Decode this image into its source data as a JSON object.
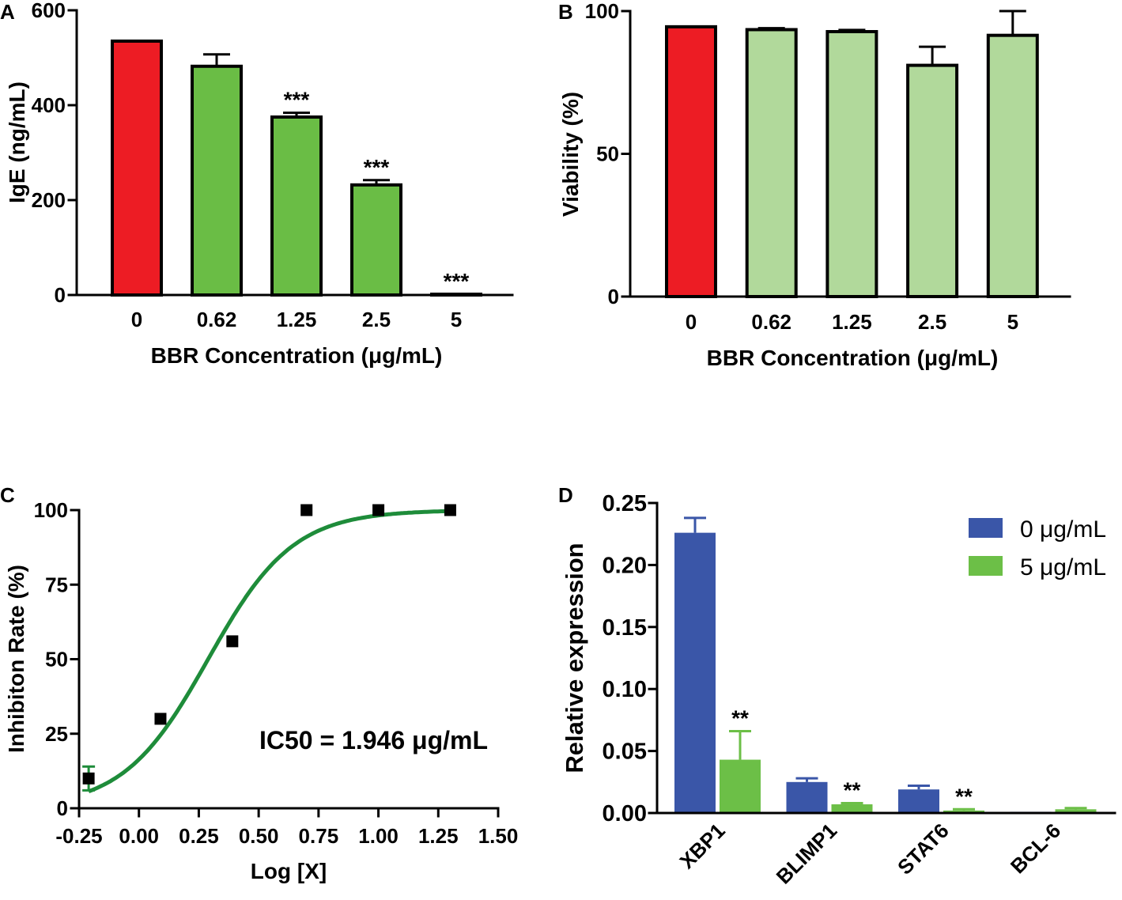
{
  "chart_data": [
    {
      "panel_label": "A",
      "type": "bar",
      "categories": [
        "0",
        "0.62",
        "1.25",
        "2.5",
        "5"
      ],
      "values": [
        535,
        482,
        375,
        232,
        0
      ],
      "errors": [
        0,
        25,
        9,
        10,
        0
      ],
      "significance": [
        "",
        "",
        "***",
        "***",
        "***"
      ],
      "colors": [
        "#ed1c24",
        "#6abd45",
        "#6abd45",
        "#6abd45",
        "#6abd45"
      ],
      "xlabel": "BBR Concentration (μg/mL)",
      "ylabel": "IgE (ng/mL)",
      "ylim": [
        0,
        600
      ],
      "yticks": [
        0,
        200,
        400,
        600
      ],
      "ytick_labels": [
        "0",
        "200",
        "400",
        "600"
      ]
    },
    {
      "panel_label": "B",
      "type": "bar",
      "categories": [
        "0",
        "0.62",
        "1.25",
        "2.5",
        "5"
      ],
      "values": [
        94.5,
        93.5,
        92.8,
        81,
        91.5
      ],
      "errors": [
        0,
        0.5,
        0.6,
        6.5,
        8.5
      ],
      "significance": [
        "",
        "",
        "",
        "",
        ""
      ],
      "colors": [
        "#ed1c24",
        "#b1d99b",
        "#b1d99b",
        "#b1d99b",
        "#b1d99b"
      ],
      "xlabel": "BBR Concentration (μg/mL)",
      "ylabel": "Viability (%)",
      "ylim": [
        0,
        100
      ],
      "yticks": [
        0,
        50,
        100
      ],
      "ytick_labels": [
        "0",
        "50",
        "100"
      ]
    },
    {
      "panel_label": "C",
      "type": "scatter",
      "x": [
        -0.21,
        0.09,
        0.39,
        0.7,
        1.0,
        1.3
      ],
      "y": [
        10,
        30,
        56,
        100,
        100,
        100
      ],
      "errors": [
        4,
        0,
        0,
        0,
        0,
        0
      ],
      "fit": {
        "bottom": 0,
        "top": 100,
        "log_ic50": 0.289,
        "hill_slope": 2.45,
        "x_range": [
          -0.21,
          1.3
        ]
      },
      "annotation": "IC50 = 1.946 μg/mL",
      "xlabel": "Log [X]",
      "ylabel": "Inhibiton Rate (%)",
      "xlim": [
        -0.25,
        1.5
      ],
      "ylim": [
        0,
        100
      ],
      "xticks": [
        -0.25,
        0,
        0.25,
        0.5,
        0.75,
        1.0,
        1.25,
        1.5
      ],
      "xtick_labels": [
        "-0.25",
        "0.00",
        "0.25",
        "0.50",
        "0.75",
        "1.00",
        "1.25",
        "1.50"
      ],
      "yticks": [
        0,
        25,
        50,
        75,
        100
      ],
      "ytick_labels": [
        "0",
        "25",
        "50",
        "75",
        "100"
      ],
      "point_color": "#000000",
      "curve_color": "#1e8c3a"
    },
    {
      "panel_label": "D",
      "type": "bar",
      "categories": [
        "XBP1",
        "BLIMP1",
        "STAT6",
        "BCL-6"
      ],
      "series": [
        {
          "name": "0 μg/mL",
          "values": [
            0.226,
            0.025,
            0.019,
            0.001
          ],
          "errors": [
            0.012,
            0.003,
            0.003,
            0
          ],
          "color": "#3a56a8",
          "significance": [
            "",
            "",
            "",
            ""
          ]
        },
        {
          "name": "5 μg/mL",
          "values": [
            0.043,
            0.007,
            0.002,
            0.003
          ],
          "errors": [
            0.023,
            0.001,
            0.001,
            0.001
          ],
          "color": "#6cbf47",
          "significance": [
            "**",
            "**",
            "**",
            ""
          ]
        }
      ],
      "xlabel": "",
      "ylabel": "Relative expression",
      "ylim": [
        0,
        0.25
      ],
      "yticks": [
        0,
        0.05,
        0.1,
        0.15,
        0.2,
        0.25
      ],
      "ytick_labels": [
        "0.00",
        "0.05",
        "0.10",
        "0.15",
        "0.20",
        "0.25"
      ],
      "legend_position": "top-right"
    }
  ]
}
